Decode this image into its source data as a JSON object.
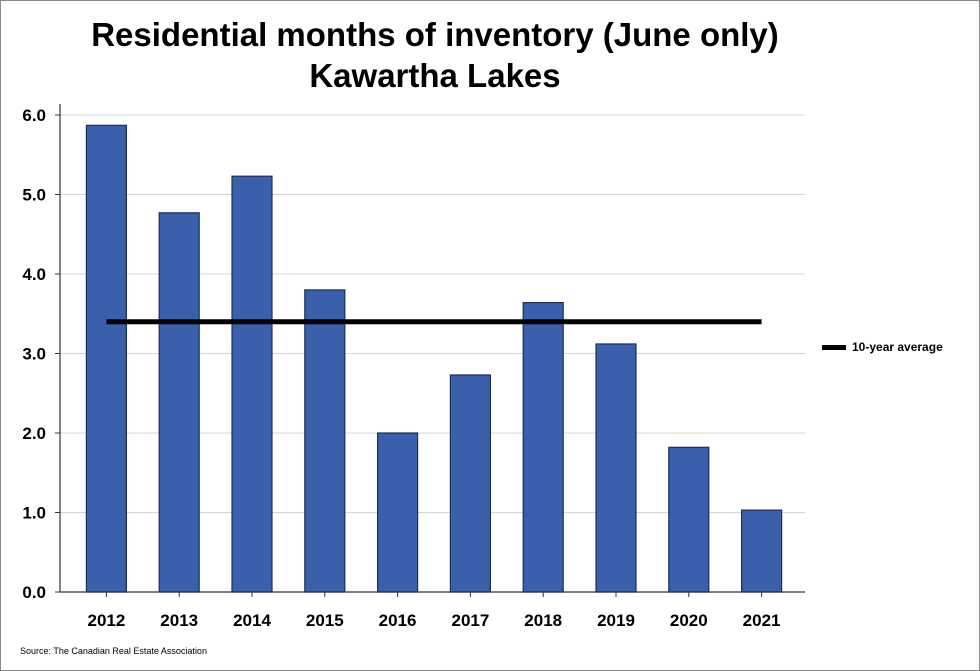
{
  "chart_data": {
    "type": "bar",
    "title": "Residential months of inventory (June only)",
    "subtitle": "Kawartha Lakes",
    "categories": [
      "2012",
      "2013",
      "2014",
      "2015",
      "2016",
      "2017",
      "2018",
      "2019",
      "2020",
      "2021"
    ],
    "values": [
      5.87,
      4.77,
      5.23,
      3.8,
      2.0,
      2.73,
      3.64,
      3.12,
      1.82,
      1.03
    ],
    "reference_line": {
      "name": "10-year average",
      "value": 3.4
    },
    "y_ticks": [
      "0.0",
      "1.0",
      "2.0",
      "3.0",
      "4.0",
      "5.0",
      "6.0"
    ],
    "ylim": [
      0,
      6.1
    ],
    "grid": true,
    "legend_position": "right",
    "colors": {
      "bar": "#3a5fab",
      "bar_edge": "#1c2f5a",
      "average_line": "#000000",
      "grid": "#d4d4d4"
    }
  },
  "source": "Source: The Canadian Real Estate Association"
}
